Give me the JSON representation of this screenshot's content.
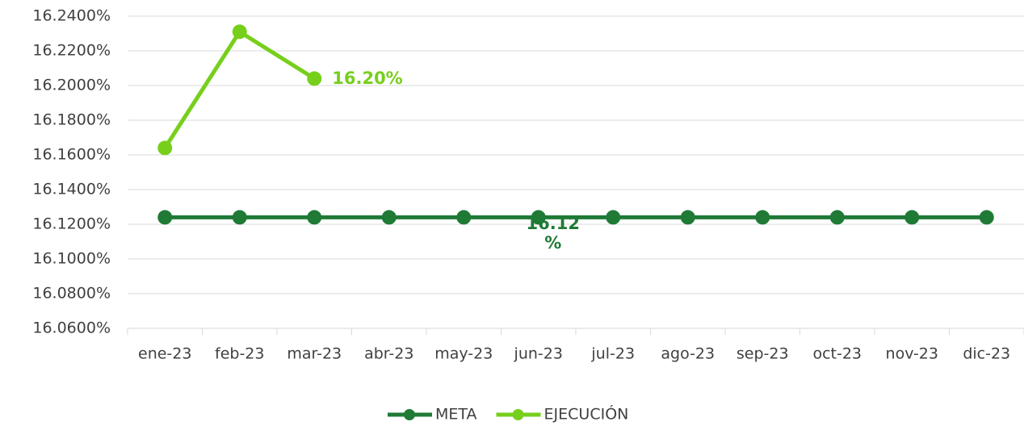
{
  "chart_data": {
    "type": "line",
    "categories": [
      "ene-23",
      "feb-23",
      "mar-23",
      "abr-23",
      "may-23",
      "jun-23",
      "jul-23",
      "ago-23",
      "sep-23",
      "oct-23",
      "nov-23",
      "dic-23"
    ],
    "series": [
      {
        "name": "META",
        "color": "#1f7a35",
        "values": [
          16.124,
          16.124,
          16.124,
          16.124,
          16.124,
          16.124,
          16.124,
          16.124,
          16.124,
          16.124,
          16.124,
          16.124
        ],
        "value_labels": [
          null,
          null,
          null,
          null,
          null,
          "16.12 %",
          null,
          null,
          null,
          null,
          null,
          null
        ]
      },
      {
        "name": "EJECUCIÓN",
        "color": "#77cf1c",
        "values": [
          16.164,
          16.231,
          16.204,
          null,
          null,
          null,
          null,
          null,
          null,
          null,
          null,
          null
        ],
        "value_labels": [
          null,
          null,
          "16.20%",
          null,
          null,
          null,
          null,
          null,
          null,
          null,
          null,
          null
        ]
      }
    ],
    "ylim": [
      16.06,
      16.24
    ],
    "yticks": [
      {
        "value": 16.06,
        "label": "16.0600%"
      },
      {
        "value": 16.08,
        "label": "16.0800%"
      },
      {
        "value": 16.1,
        "label": "16.1000%"
      },
      {
        "value": 16.12,
        "label": "16.1200%"
      },
      {
        "value": 16.14,
        "label": "16.1400%"
      },
      {
        "value": 16.16,
        "label": "16.1600%"
      },
      {
        "value": 16.18,
        "label": "16.1800%"
      },
      {
        "value": 16.2,
        "label": "16.2000%"
      },
      {
        "value": 16.22,
        "label": "16.2200%"
      },
      {
        "value": 16.24,
        "label": "16.2400%"
      }
    ],
    "grid": true,
    "legend": "bottom"
  }
}
